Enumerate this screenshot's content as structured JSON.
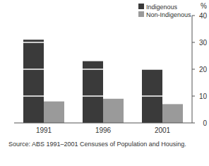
{
  "chart_data": {
    "type": "bar",
    "categories": [
      "1991",
      "1996",
      "2001"
    ],
    "series": [
      {
        "name": "Indigenous",
        "color": "#3a3a3a",
        "values": [
          31,
          23,
          20
        ]
      },
      {
        "name": "Non-Indigenous",
        "color": "#9a9a9a",
        "values": [
          8,
          9,
          7
        ]
      }
    ],
    "y_label": "%",
    "ylim": [
      0,
      40
    ],
    "yticks": [
      0,
      10,
      20,
      30,
      40
    ],
    "grid": true,
    "legend": "top-right",
    "source": "Source: ABS 1991–2001 Censuses of Population and Housing."
  }
}
